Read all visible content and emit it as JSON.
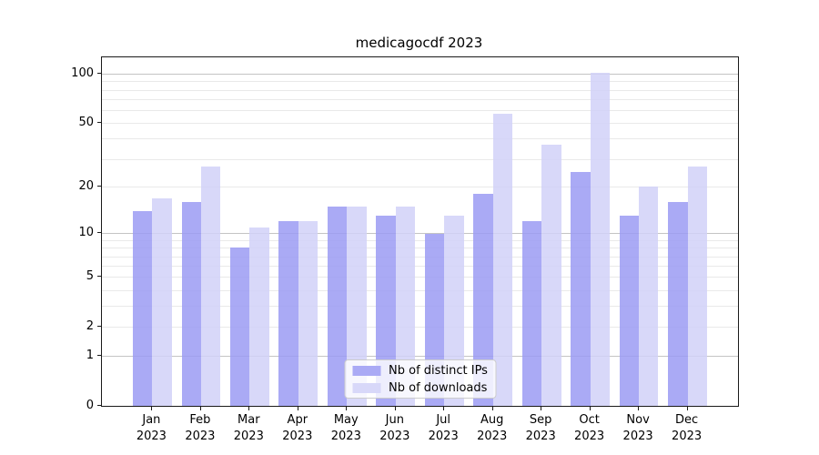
{
  "chart_data": {
    "type": "bar",
    "title": "medicagocdf 2023",
    "categories": [
      "Jan",
      "Feb",
      "Mar",
      "Apr",
      "May",
      "Jun",
      "Jul",
      "Aug",
      "Sep",
      "Oct",
      "Nov",
      "Dec"
    ],
    "x_tick_second_line": "2023",
    "series": [
      {
        "name": "Nb of distinct IPs",
        "color": "#aaaaf5",
        "values": [
          14,
          16,
          8,
          12,
          15,
          13,
          10,
          18,
          12,
          25,
          13,
          16
        ]
      },
      {
        "name": "Nb of downloads",
        "color": "#d8d8f9",
        "values": [
          17,
          27,
          11,
          12,
          15,
          15,
          13,
          57,
          37,
          102,
          20,
          27
        ]
      }
    ],
    "xlabel": "",
    "ylabel": "",
    "y_axis": {
      "scale": "log1p",
      "ylim": [
        0,
        126
      ],
      "tick_values": [
        0,
        1,
        2,
        5,
        10,
        20,
        50,
        100
      ],
      "tick_labels": [
        "0",
        "1",
        "2",
        "5",
        "10",
        "20",
        "50",
        "100"
      ],
      "minor_gridlines": [
        2,
        3,
        4,
        5,
        6,
        7,
        8,
        9,
        20,
        30,
        40,
        50,
        60,
        70,
        80,
        90
      ],
      "major_gridlines": [
        1,
        10,
        100
      ]
    },
    "grid": true,
    "legend_position": "lower center"
  },
  "colors": {
    "minor_gridline": "#e9e9e9",
    "major_gridline": "#c4c4c4",
    "axis": "#1a1a1a",
    "legend_border": "#cccccc"
  }
}
